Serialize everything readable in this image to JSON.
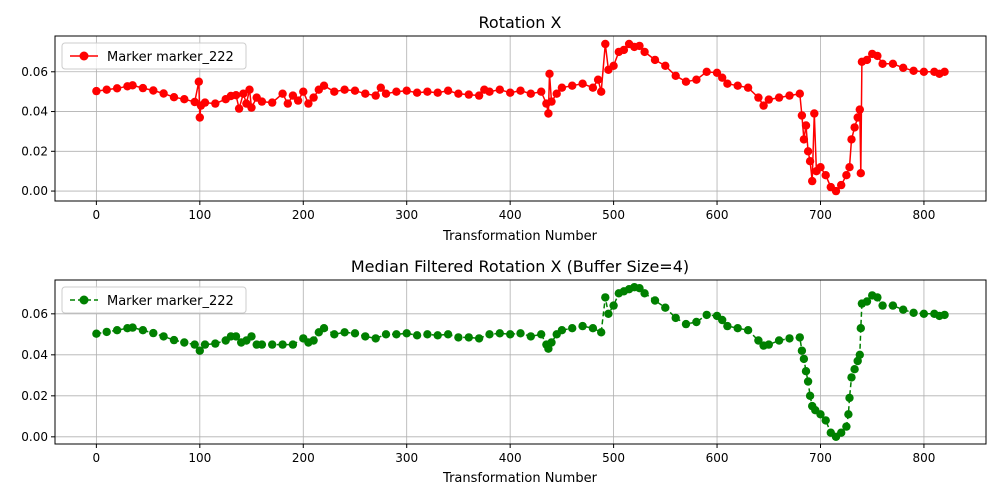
{
  "chart_data": [
    {
      "type": "line",
      "title": "Rotation X",
      "xlabel": "Transformation Number",
      "ylabel": "",
      "xlim": [
        -40,
        860
      ],
      "ylim": [
        -0.005,
        0.078
      ],
      "xticks": [
        0,
        100,
        200,
        300,
        400,
        500,
        600,
        700,
        800
      ],
      "yticks": [
        0.0,
        0.02,
        0.04,
        0.06
      ],
      "grid": true,
      "legend_position": "top-left",
      "color": "#ff0000",
      "marker": "circle",
      "linestyle": "solid",
      "series": [
        {
          "name": "Marker marker_222",
          "points": [
            [
              0,
              0.0503
            ],
            [
              10,
              0.051
            ],
            [
              20,
              0.0517
            ],
            [
              30,
              0.0527
            ],
            [
              35,
              0.0532
            ],
            [
              45,
              0.0518
            ],
            [
              55,
              0.0506
            ],
            [
              65,
              0.0491
            ],
            [
              75,
              0.0472
            ],
            [
              85,
              0.0462
            ],
            [
              95,
              0.0448
            ],
            [
              99,
              0.055
            ],
            [
              100,
              0.037
            ],
            [
              101,
              0.043
            ],
            [
              105,
              0.0445
            ],
            [
              115,
              0.044
            ],
            [
              125,
              0.0462
            ],
            [
              130,
              0.0478
            ],
            [
              135,
              0.0482
            ],
            [
              138,
              0.0415
            ],
            [
              142,
              0.049
            ],
            [
              145,
              0.044
            ],
            [
              148,
              0.051
            ],
            [
              150,
              0.042
            ],
            [
              155,
              0.047
            ],
            [
              160,
              0.045
            ],
            [
              170,
              0.0445
            ],
            [
              180,
              0.049
            ],
            [
              185,
              0.044
            ],
            [
              190,
              0.048
            ],
            [
              195,
              0.0455
            ],
            [
              200,
              0.05
            ],
            [
              205,
              0.044
            ],
            [
              210,
              0.047
            ],
            [
              215,
              0.051
            ],
            [
              220,
              0.053
            ],
            [
              230,
              0.05
            ],
            [
              240,
              0.051
            ],
            [
              250,
              0.0505
            ],
            [
              260,
              0.049
            ],
            [
              270,
              0.048
            ],
            [
              275,
              0.052
            ],
            [
              280,
              0.049
            ],
            [
              290,
              0.05
            ],
            [
              300,
              0.0505
            ],
            [
              310,
              0.0495
            ],
            [
              320,
              0.05
            ],
            [
              330,
              0.0495
            ],
            [
              340,
              0.0505
            ],
            [
              350,
              0.049
            ],
            [
              360,
              0.0485
            ],
            [
              370,
              0.048
            ],
            [
              375,
              0.051
            ],
            [
              380,
              0.05
            ],
            [
              390,
              0.051
            ],
            [
              400,
              0.0495
            ],
            [
              410,
              0.0505
            ],
            [
              420,
              0.049
            ],
            [
              430,
              0.05
            ],
            [
              435,
              0.044
            ],
            [
              437,
              0.039
            ],
            [
              438,
              0.059
            ],
            [
              440,
              0.045
            ],
            [
              445,
              0.049
            ],
            [
              450,
              0.052
            ],
            [
              460,
              0.053
            ],
            [
              470,
              0.054
            ],
            [
              480,
              0.052
            ],
            [
              485,
              0.056
            ],
            [
              488,
              0.05
            ],
            [
              492,
              0.074
            ],
            [
              495,
              0.061
            ],
            [
              500,
              0.063
            ],
            [
              505,
              0.07
            ],
            [
              510,
              0.071
            ],
            [
              515,
              0.074
            ],
            [
              520,
              0.0725
            ],
            [
              525,
              0.073
            ],
            [
              530,
              0.07
            ],
            [
              540,
              0.066
            ],
            [
              550,
              0.063
            ],
            [
              560,
              0.058
            ],
            [
              570,
              0.055
            ],
            [
              580,
              0.056
            ],
            [
              590,
              0.06
            ],
            [
              600,
              0.0595
            ],
            [
              605,
              0.057
            ],
            [
              610,
              0.054
            ],
            [
              620,
              0.053
            ],
            [
              630,
              0.052
            ],
            [
              640,
              0.047
            ],
            [
              645,
              0.043
            ],
            [
              650,
              0.046
            ],
            [
              660,
              0.047
            ],
            [
              670,
              0.048
            ],
            [
              680,
              0.049
            ],
            [
              682,
              0.038
            ],
            [
              684,
              0.026
            ],
            [
              686,
              0.033
            ],
            [
              688,
              0.02
            ],
            [
              690,
              0.015
            ],
            [
              692,
              0.005
            ],
            [
              694,
              0.039
            ],
            [
              696,
              0.01
            ],
            [
              700,
              0.012
            ],
            [
              705,
              0.008
            ],
            [
              710,
              0.002
            ],
            [
              715,
              0.0
            ],
            [
              720,
              0.003
            ],
            [
              725,
              0.008
            ],
            [
              728,
              0.012
            ],
            [
              730,
              0.026
            ],
            [
              733,
              0.032
            ],
            [
              736,
              0.037
            ],
            [
              738,
              0.041
            ],
            [
              739,
              0.009
            ],
            [
              740,
              0.065
            ],
            [
              745,
              0.066
            ],
            [
              750,
              0.069
            ],
            [
              755,
              0.068
            ],
            [
              760,
              0.064
            ],
            [
              770,
              0.064
            ],
            [
              780,
              0.062
            ],
            [
              790,
              0.0605
            ],
            [
              800,
              0.06
            ],
            [
              810,
              0.06
            ],
            [
              815,
              0.059
            ],
            [
              820,
              0.06
            ]
          ]
        }
      ]
    },
    {
      "type": "line",
      "title": "Median Filtered Rotation X (Buffer Size=4)",
      "xlabel": "Transformation Number",
      "ylabel": "",
      "xlim": [
        -40,
        860
      ],
      "ylim": [
        -0.0035,
        0.0765
      ],
      "xticks": [
        0,
        100,
        200,
        300,
        400,
        500,
        600,
        700,
        800
      ],
      "yticks": [
        0.0,
        0.02,
        0.04,
        0.06
      ],
      "grid": true,
      "legend_position": "top-left",
      "color": "#008000",
      "marker": "circle",
      "linestyle": "dashed",
      "series": [
        {
          "name": "Marker marker_222",
          "points": [
            [
              0,
              0.0503
            ],
            [
              10,
              0.0512
            ],
            [
              20,
              0.052
            ],
            [
              30,
              0.053
            ],
            [
              35,
              0.0533
            ],
            [
              45,
              0.052
            ],
            [
              55,
              0.0506
            ],
            [
              65,
              0.049
            ],
            [
              75,
              0.0472
            ],
            [
              85,
              0.046
            ],
            [
              95,
              0.045
            ],
            [
              100,
              0.042
            ],
            [
              105,
              0.045
            ],
            [
              115,
              0.0455
            ],
            [
              125,
              0.047
            ],
            [
              130,
              0.049
            ],
            [
              135,
              0.049
            ],
            [
              140,
              0.046
            ],
            [
              145,
              0.047
            ],
            [
              150,
              0.049
            ],
            [
              155,
              0.045
            ],
            [
              160,
              0.045
            ],
            [
              170,
              0.045
            ],
            [
              180,
              0.045
            ],
            [
              190,
              0.045
            ],
            [
              200,
              0.048
            ],
            [
              205,
              0.046
            ],
            [
              210,
              0.047
            ],
            [
              215,
              0.051
            ],
            [
              220,
              0.053
            ],
            [
              230,
              0.05
            ],
            [
              240,
              0.051
            ],
            [
              250,
              0.0505
            ],
            [
              260,
              0.049
            ],
            [
              270,
              0.048
            ],
            [
              280,
              0.05
            ],
            [
              290,
              0.05
            ],
            [
              300,
              0.0505
            ],
            [
              310,
              0.0495
            ],
            [
              320,
              0.05
            ],
            [
              330,
              0.0495
            ],
            [
              340,
              0.05
            ],
            [
              350,
              0.0485
            ],
            [
              360,
              0.0485
            ],
            [
              370,
              0.048
            ],
            [
              380,
              0.05
            ],
            [
              390,
              0.0505
            ],
            [
              400,
              0.05
            ],
            [
              410,
              0.0505
            ],
            [
              420,
              0.049
            ],
            [
              430,
              0.05
            ],
            [
              435,
              0.045
            ],
            [
              437,
              0.043
            ],
            [
              440,
              0.046
            ],
            [
              445,
              0.05
            ],
            [
              450,
              0.052
            ],
            [
              460,
              0.053
            ],
            [
              470,
              0.054
            ],
            [
              480,
              0.053
            ],
            [
              488,
              0.051
            ],
            [
              492,
              0.068
            ],
            [
              495,
              0.06
            ],
            [
              500,
              0.064
            ],
            [
              505,
              0.07
            ],
            [
              510,
              0.071
            ],
            [
              515,
              0.072
            ],
            [
              520,
              0.073
            ],
            [
              525,
              0.0725
            ],
            [
              530,
              0.07
            ],
            [
              540,
              0.0665
            ],
            [
              550,
              0.063
            ],
            [
              560,
              0.058
            ],
            [
              570,
              0.055
            ],
            [
              580,
              0.056
            ],
            [
              590,
              0.0595
            ],
            [
              600,
              0.059
            ],
            [
              605,
              0.057
            ],
            [
              610,
              0.054
            ],
            [
              620,
              0.053
            ],
            [
              630,
              0.052
            ],
            [
              640,
              0.047
            ],
            [
              645,
              0.0445
            ],
            [
              650,
              0.045
            ],
            [
              660,
              0.047
            ],
            [
              670,
              0.048
            ],
            [
              680,
              0.0485
            ],
            [
              682,
              0.042
            ],
            [
              684,
              0.038
            ],
            [
              686,
              0.032
            ],
            [
              688,
              0.027
            ],
            [
              690,
              0.02
            ],
            [
              692,
              0.015
            ],
            [
              695,
              0.013
            ],
            [
              700,
              0.011
            ],
            [
              705,
              0.008
            ],
            [
              710,
              0.002
            ],
            [
              715,
              0.0
            ],
            [
              720,
              0.002
            ],
            [
              725,
              0.005
            ],
            [
              727,
              0.011
            ],
            [
              728,
              0.019
            ],
            [
              730,
              0.029
            ],
            [
              733,
              0.033
            ],
            [
              736,
              0.037
            ],
            [
              738,
              0.04
            ],
            [
              739,
              0.053
            ],
            [
              740,
              0.065
            ],
            [
              745,
              0.066
            ],
            [
              750,
              0.069
            ],
            [
              755,
              0.068
            ],
            [
              760,
              0.064
            ],
            [
              770,
              0.064
            ],
            [
              780,
              0.062
            ],
            [
              790,
              0.0605
            ],
            [
              800,
              0.06
            ],
            [
              810,
              0.06
            ],
            [
              815,
              0.059
            ],
            [
              820,
              0.0595
            ]
          ]
        }
      ]
    }
  ]
}
